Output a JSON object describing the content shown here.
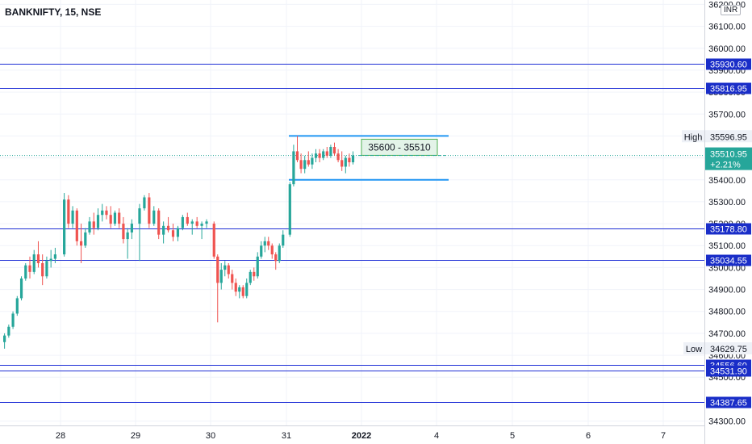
{
  "title": "BANKNIFTY, 15, NSE",
  "currency": "INR",
  "colors": {
    "up": "#26a69a",
    "down": "#ef5350",
    "level_line": "#1f2fd6",
    "level_label_bg": "#1a2ec8",
    "range_line": "#2196f3",
    "zone_fill": "#e3f3e8",
    "zone_border": "#4caf50",
    "last_price_bg": "#26a69a"
  },
  "chart_data": {
    "type": "candlestick",
    "ylim": [
      34280,
      36220
    ],
    "y_tick_labels": [
      "36200.00",
      "36100.00",
      "36000.00",
      "35900.00",
      "35800.00",
      "35700.00",
      "35600.00",
      "35500.00",
      "35400.00",
      "35300.00",
      "35200.00",
      "35100.00",
      "35000.00",
      "34900.00",
      "34800.00",
      "34700.00",
      "34600.00",
      "34500.00",
      "34300.00"
    ],
    "y_tick_values": [
      36200,
      36100,
      36000,
      35900,
      35800,
      35700,
      35600,
      35500,
      35400,
      35300,
      35200,
      35100,
      35000,
      34900,
      34800,
      34700,
      34600,
      34500,
      34300
    ],
    "x_tick_labels": [
      "28",
      "29",
      "30",
      "31",
      "2022",
      "4",
      "5",
      "6",
      "7"
    ],
    "bold_x_labels": [
      "2022"
    ],
    "horizontal_levels": [
      {
        "value": 35930.6,
        "label": "35930.60"
      },
      {
        "value": 35816.95,
        "label": "35816.95"
      },
      {
        "value": 35178.8,
        "label": "35178.80"
      },
      {
        "value": 35034.55,
        "label": "35034.55"
      },
      {
        "value": 34556.6,
        "label": "34556.60"
      },
      {
        "value": 34531.9,
        "label": "34531.90"
      },
      {
        "value": 34387.65,
        "label": "34387.65"
      }
    ],
    "high": {
      "label": "High",
      "value": "35596.95"
    },
    "low": {
      "label": "Low",
      "value": "34629.75"
    },
    "last_price": {
      "value": "35510.95",
      "change": "+2.21%",
      "numeric": 35510.95
    },
    "range_box": {
      "top": 35600,
      "bottom": 35400,
      "start_day": "31",
      "end_day": "4"
    },
    "zone_label": "35600 - 35510",
    "candles": [
      {
        "day": "27",
        "o": 34660,
        "h": 34700,
        "l": 34630,
        "c": 34690
      },
      {
        "day": "27",
        "o": 34690,
        "h": 34740,
        "l": 34680,
        "c": 34730
      },
      {
        "day": "27",
        "o": 34730,
        "h": 34800,
        "l": 34720,
        "c": 34790
      },
      {
        "day": "27",
        "o": 34790,
        "h": 34870,
        "l": 34780,
        "c": 34860
      },
      {
        "day": "27",
        "o": 34860,
        "h": 34960,
        "l": 34850,
        "c": 34950
      },
      {
        "day": "27",
        "o": 34950,
        "h": 35020,
        "l": 34940,
        "c": 35010
      },
      {
        "day": "27",
        "o": 35010,
        "h": 35050,
        "l": 34950,
        "c": 34980
      },
      {
        "day": "27",
        "o": 34980,
        "h": 35080,
        "l": 34970,
        "c": 35060
      },
      {
        "day": "27",
        "o": 35060,
        "h": 35120,
        "l": 35000,
        "c": 35020
      },
      {
        "day": "27",
        "o": 35020,
        "h": 35060,
        "l": 34920,
        "c": 34960
      },
      {
        "day": "27",
        "o": 34960,
        "h": 35050,
        "l": 34950,
        "c": 35030
      },
      {
        "day": "27",
        "o": 35030,
        "h": 35080,
        "l": 35000,
        "c": 35040
      },
      {
        "day": "27",
        "o": 35040,
        "h": 35090,
        "l": 35020,
        "c": 35060
      },
      {
        "day": "28",
        "o": 35060,
        "h": 35340,
        "l": 35050,
        "c": 35310
      },
      {
        "day": "28",
        "o": 35310,
        "h": 35330,
        "l": 35180,
        "c": 35200
      },
      {
        "day": "28",
        "o": 35200,
        "h": 35280,
        "l": 35180,
        "c": 35260
      },
      {
        "day": "28",
        "o": 35260,
        "h": 35270,
        "l": 35100,
        "c": 35120
      },
      {
        "day": "28",
        "o": 35120,
        "h": 35200,
        "l": 35020,
        "c": 35100
      },
      {
        "day": "28",
        "o": 35100,
        "h": 35180,
        "l": 35090,
        "c": 35160
      },
      {
        "day": "28",
        "o": 35160,
        "h": 35230,
        "l": 35150,
        "c": 35210
      },
      {
        "day": "28",
        "o": 35210,
        "h": 35250,
        "l": 35150,
        "c": 35180
      },
      {
        "day": "28",
        "o": 35180,
        "h": 35270,
        "l": 35170,
        "c": 35240
      },
      {
        "day": "28",
        "o": 35240,
        "h": 35290,
        "l": 35210,
        "c": 35260
      },
      {
        "day": "28",
        "o": 35260,
        "h": 35280,
        "l": 35220,
        "c": 35240
      },
      {
        "day": "28",
        "o": 35240,
        "h": 35280,
        "l": 35180,
        "c": 35200
      },
      {
        "day": "28",
        "o": 35200,
        "h": 35260,
        "l": 35190,
        "c": 35250
      },
      {
        "day": "28",
        "o": 35250,
        "h": 35270,
        "l": 35180,
        "c": 35200
      },
      {
        "day": "28",
        "o": 35200,
        "h": 35230,
        "l": 35110,
        "c": 35130
      },
      {
        "day": "28",
        "o": 35130,
        "h": 35180,
        "l": 35040,
        "c": 35160
      },
      {
        "day": "28",
        "o": 35160,
        "h": 35220,
        "l": 35130,
        "c": 35200
      },
      {
        "day": "29",
        "o": 35200,
        "h": 35290,
        "l": 35030,
        "c": 35270
      },
      {
        "day": "29",
        "o": 35270,
        "h": 35330,
        "l": 35260,
        "c": 35320
      },
      {
        "day": "29",
        "o": 35320,
        "h": 35340,
        "l": 35180,
        "c": 35200
      },
      {
        "day": "29",
        "o": 35200,
        "h": 35280,
        "l": 35190,
        "c": 35260
      },
      {
        "day": "29",
        "o": 35260,
        "h": 35270,
        "l": 35130,
        "c": 35150
      },
      {
        "day": "29",
        "o": 35150,
        "h": 35210,
        "l": 35110,
        "c": 35190
      },
      {
        "day": "29",
        "o": 35190,
        "h": 35230,
        "l": 35160,
        "c": 35170
      },
      {
        "day": "29",
        "o": 35170,
        "h": 35200,
        "l": 35120,
        "c": 35140
      },
      {
        "day": "29",
        "o": 35140,
        "h": 35190,
        "l": 35120,
        "c": 35180
      },
      {
        "day": "29",
        "o": 35180,
        "h": 35240,
        "l": 35170,
        "c": 35230
      },
      {
        "day": "29",
        "o": 35230,
        "h": 35250,
        "l": 35190,
        "c": 35200
      },
      {
        "day": "29",
        "o": 35200,
        "h": 35220,
        "l": 35150,
        "c": 35210
      },
      {
        "day": "29",
        "o": 35210,
        "h": 35230,
        "l": 35180,
        "c": 35190
      },
      {
        "day": "29",
        "o": 35190,
        "h": 35210,
        "l": 35130,
        "c": 35200
      },
      {
        "day": "29",
        "o": 35200,
        "h": 35220,
        "l": 35180,
        "c": 35210
      },
      {
        "day": "30",
        "o": 35200,
        "h": 35210,
        "l": 35040,
        "c": 35050
      },
      {
        "day": "30",
        "o": 35050,
        "h": 35060,
        "l": 34750,
        "c": 34930
      },
      {
        "day": "30",
        "o": 34930,
        "h": 35020,
        "l": 34900,
        "c": 34990
      },
      {
        "day": "30",
        "o": 34990,
        "h": 35030,
        "l": 34960,
        "c": 35010
      },
      {
        "day": "30",
        "o": 35010,
        "h": 35020,
        "l": 34950,
        "c": 34970
      },
      {
        "day": "30",
        "o": 34970,
        "h": 34990,
        "l": 34900,
        "c": 34930
      },
      {
        "day": "30",
        "o": 34930,
        "h": 34950,
        "l": 34870,
        "c": 34890
      },
      {
        "day": "30",
        "o": 34890,
        "h": 34920,
        "l": 34860,
        "c": 34910
      },
      {
        "day": "30",
        "o": 34910,
        "h": 34920,
        "l": 34860,
        "c": 34870
      },
      {
        "day": "30",
        "o": 34870,
        "h": 34950,
        "l": 34860,
        "c": 34930
      },
      {
        "day": "30",
        "o": 34930,
        "h": 34990,
        "l": 34920,
        "c": 34980
      },
      {
        "day": "30",
        "o": 34980,
        "h": 35000,
        "l": 34940,
        "c": 34960
      },
      {
        "day": "30",
        "o": 34960,
        "h": 35070,
        "l": 34950,
        "c": 35050
      },
      {
        "day": "30",
        "o": 35050,
        "h": 35120,
        "l": 35040,
        "c": 35100
      },
      {
        "day": "30",
        "o": 35100,
        "h": 35140,
        "l": 35070,
        "c": 35120
      },
      {
        "day": "30",
        "o": 35120,
        "h": 35140,
        "l": 35080,
        "c": 35100
      },
      {
        "day": "30",
        "o": 35100,
        "h": 35110,
        "l": 35040,
        "c": 35060
      },
      {
        "day": "30",
        "o": 35060,
        "h": 35070,
        "l": 34990,
        "c": 35030
      },
      {
        "day": "30",
        "o": 35030,
        "h": 35110,
        "l": 35020,
        "c": 35100
      },
      {
        "day": "30",
        "o": 35100,
        "h": 35170,
        "l": 35090,
        "c": 35150
      },
      {
        "day": "31",
        "o": 35150,
        "h": 35390,
        "l": 35140,
        "c": 35380
      },
      {
        "day": "31",
        "o": 35380,
        "h": 35560,
        "l": 35370,
        "c": 35530
      },
      {
        "day": "31",
        "o": 35530,
        "h": 35600,
        "l": 35480,
        "c": 35490
      },
      {
        "day": "31",
        "o": 35490,
        "h": 35520,
        "l": 35430,
        "c": 35450
      },
      {
        "day": "31",
        "o": 35450,
        "h": 35510,
        "l": 35430,
        "c": 35490
      },
      {
        "day": "31",
        "o": 35490,
        "h": 35530,
        "l": 35460,
        "c": 35470
      },
      {
        "day": "31",
        "o": 35470,
        "h": 35520,
        "l": 35450,
        "c": 35500
      },
      {
        "day": "31",
        "o": 35500,
        "h": 35540,
        "l": 35480,
        "c": 35520
      },
      {
        "day": "31",
        "o": 35520,
        "h": 35540,
        "l": 35480,
        "c": 35500
      },
      {
        "day": "31",
        "o": 35500,
        "h": 35540,
        "l": 35490,
        "c": 35530
      },
      {
        "day": "31",
        "o": 35530,
        "h": 35550,
        "l": 35500,
        "c": 35510
      },
      {
        "day": "31",
        "o": 35510,
        "h": 35560,
        "l": 35500,
        "c": 35550
      },
      {
        "day": "31",
        "o": 35550,
        "h": 35570,
        "l": 35510,
        "c": 35520
      },
      {
        "day": "31",
        "o": 35520,
        "h": 35540,
        "l": 35480,
        "c": 35490
      },
      {
        "day": "31",
        "o": 35490,
        "h": 35530,
        "l": 35440,
        "c": 35460
      },
      {
        "day": "31",
        "o": 35460,
        "h": 35510,
        "l": 35430,
        "c": 35500
      },
      {
        "day": "31",
        "o": 35500,
        "h": 35520,
        "l": 35460,
        "c": 35480
      },
      {
        "day": "31",
        "o": 35480,
        "h": 35530,
        "l": 35470,
        "c": 35511
      }
    ]
  }
}
